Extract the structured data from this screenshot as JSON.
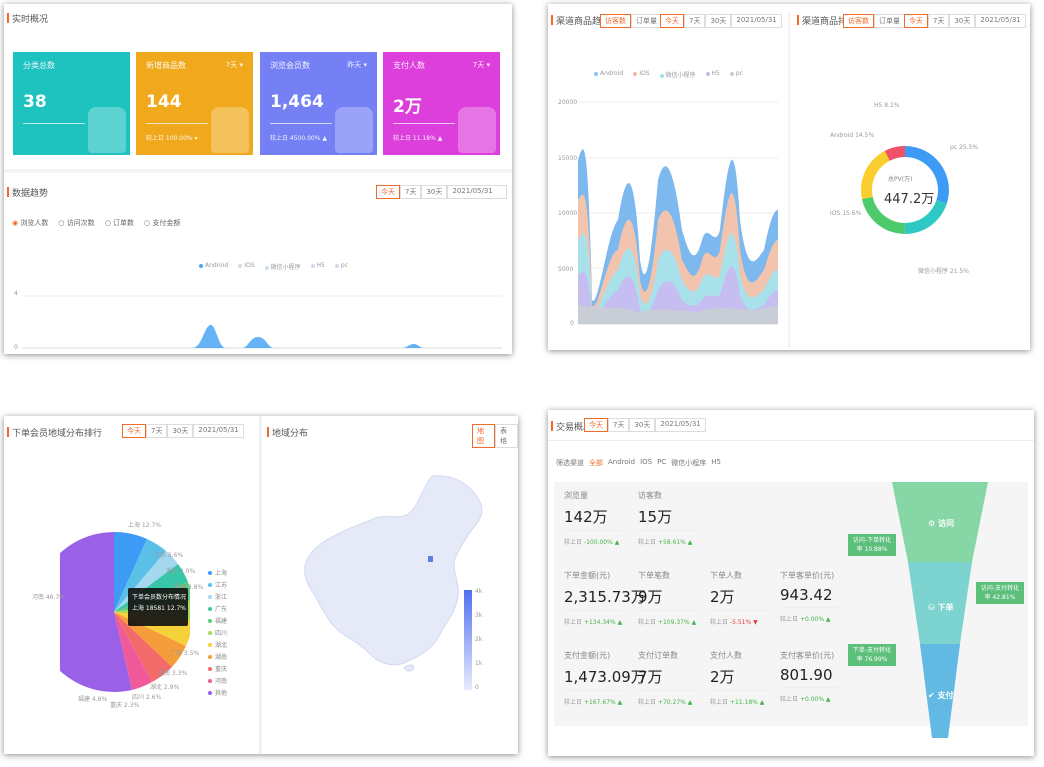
{
  "overview": {
    "title": "实时概况",
    "cards": [
      {
        "label": "分类总数",
        "value": "38",
        "dropdown": "",
        "sub": "",
        "color": "#1ec3c0"
      },
      {
        "label": "新增商品数",
        "value": "144",
        "dropdown": "7天 ▾",
        "sub": "较上日 100.00% ▾",
        "color": "#f0a91c"
      },
      {
        "label": "浏览会员数",
        "value": "1,464",
        "dropdown": "昨天 ▾",
        "sub": "较上日 4500.00% ▲",
        "color": "#7580f5"
      },
      {
        "label": "支付人数",
        "value": "2万",
        "dropdown": "7天 ▾",
        "sub": "较上日 11.18% ▲",
        "color": "#dd3fdc"
      }
    ]
  },
  "trend": {
    "title": "数据趋势",
    "tabs": [
      "今天",
      "7天",
      "30天",
      "2021/05/31"
    ],
    "radios": [
      "浏览人数",
      "访问次数",
      "订单数",
      "支付金额"
    ],
    "legend": [
      "Android",
      "IOS",
      "微信小程序",
      "H5",
      "pc"
    ],
    "yticks": [
      "4",
      "0"
    ]
  },
  "channel_trend": {
    "title": "渠道商品趋势",
    "tag1": "访客数",
    "tag2": "订单量",
    "tabs": [
      "今天",
      "7天",
      "30天",
      "2021/05/31"
    ],
    "legend": [
      "Android",
      "IOS",
      "微信小程序",
      "H5",
      "pc"
    ],
    "yticks": [
      "20000",
      "15000",
      "10000",
      "5000",
      "0"
    ]
  },
  "channel_rank": {
    "title": "渠道商品排行",
    "tag1": "访客数",
    "tag2": "订单量",
    "tabs": [
      "今天",
      "7天",
      "30天",
      "2021/05/31"
    ],
    "center_label": "总PV(万)",
    "center_value": "447.2万",
    "slice_labels": [
      "pc 25.5%",
      "微信小程序 21.5%",
      "IOS 15.6%",
      "Android 14.5%",
      "H5 8.1%"
    ],
    "colors": [
      "#3d9bf5",
      "#2ec9c4",
      "#4dca6a",
      "#f9ce2e",
      "#f05068"
    ]
  },
  "region_rank": {
    "title": "下单会员地域分布排行",
    "tabs": [
      "今天",
      "7天",
      "30天",
      "2021/05/31"
    ],
    "pie_labels": [
      "上海 12.7%",
      "江苏 5.6%",
      "浙江 4.0%",
      "福建 3.8%",
      "广东 3.5%",
      "湖南 3.3%",
      "湖北 2.9%",
      "四川 2.6%",
      "重庆 2.3%",
      "福建 4.6%",
      "河南 46.7%"
    ],
    "tooltip_title": "下单会员数分布情况",
    "tooltip_value": "上海 18581 12.7%",
    "legend": [
      "上海",
      "江苏",
      "浙江",
      "广东",
      "福建",
      "四川",
      "湖北",
      "湖南",
      "重庆",
      "河南",
      "其他"
    ]
  },
  "region_map": {
    "title": "地域分布",
    "tabs": [
      "地图",
      "表格"
    ],
    "scale_ticks": [
      "4k",
      "3k",
      "2k",
      "1k",
      "0"
    ]
  },
  "trade": {
    "title": "交易概况",
    "tabs": [
      "今天",
      "7天",
      "30天",
      "2021/05/31"
    ],
    "filter_label": "筛选渠道",
    "filter_options": [
      "全部",
      "Android",
      "IOS",
      "PC",
      "微信小程序",
      "H5"
    ],
    "metrics": [
      {
        "label": "浏览量",
        "value": "142万",
        "compare": "较上日",
        "change": "-100.00% ▲",
        "down": false
      },
      {
        "label": "访客数",
        "value": "15万",
        "compare": "较上日",
        "change": "+58.61% ▲",
        "down": false
      },
      {
        "label": "下单金额(元)",
        "value": "2,315.73万",
        "compare": "较上日",
        "change": "+134.34% ▲",
        "down": false
      },
      {
        "label": "下单笔数",
        "value": "9万",
        "compare": "较上日",
        "change": "+109.37% ▲",
        "down": false
      },
      {
        "label": "下单人数",
        "value": "2万",
        "compare": "较上日",
        "change": "-5.51% ▼",
        "down": true
      },
      {
        "label": "下单客单价(元)",
        "value": "943.42",
        "compare": "较上日",
        "change": "+0.00% ▲",
        "down": false
      },
      {
        "label": "支付金额(元)",
        "value": "1,473.09万",
        "compare": "较上日",
        "change": "+167.67% ▲",
        "down": false
      },
      {
        "label": "支付订单数",
        "value": "7万",
        "compare": "较上日",
        "change": "+70.27% ▲",
        "down": false
      },
      {
        "label": "支付人数",
        "value": "2万",
        "compare": "较上日",
        "change": "+11.18% ▲",
        "down": false
      },
      {
        "label": "支付客单价(元)",
        "value": "801.90",
        "compare": "较上日",
        "change": "+0.00% ▲",
        "down": false
      }
    ],
    "funnel": {
      "stages": [
        "访问",
        "下单",
        "支付"
      ],
      "tags": [
        "访问-下单转化率 10.88%",
        "访问-支付转化率 42.81%",
        "下单-支付转化率 76.99%"
      ]
    }
  }
}
